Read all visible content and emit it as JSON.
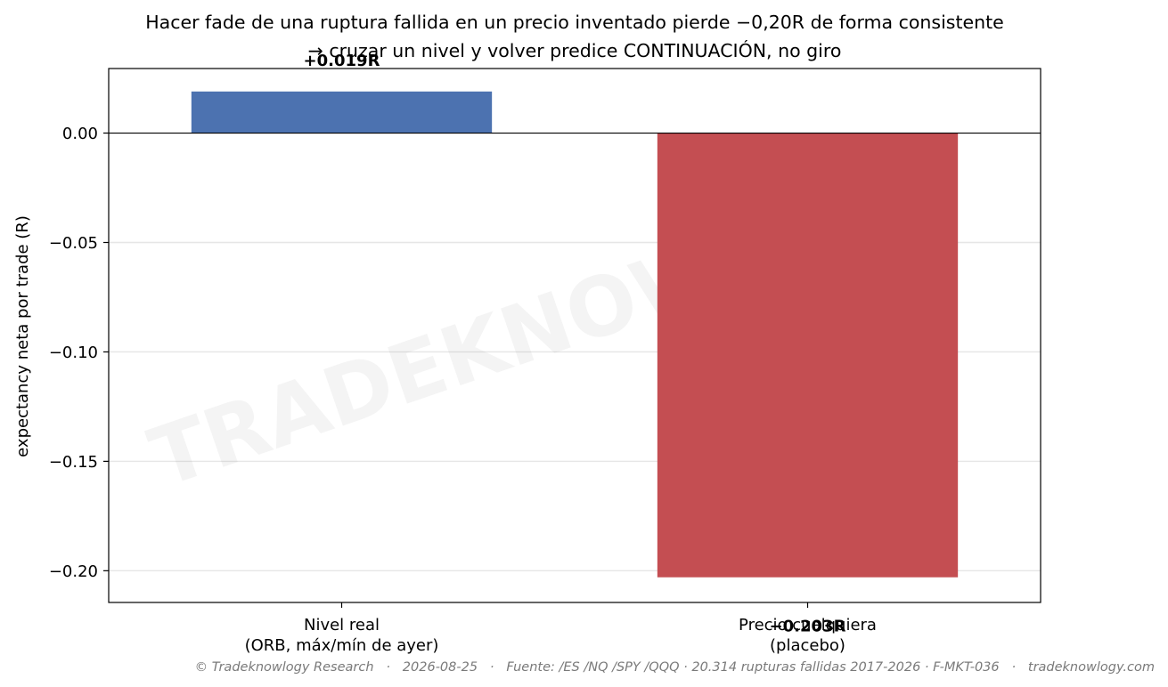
{
  "chart_data": {
    "type": "bar",
    "title_lines": [
      "Hacer fade de una ruptura fallida en un precio inventado pierde −0,20R de forma consistente",
      "→ cruzar un nivel y volver predice CONTINUACIÓN, no giro"
    ],
    "ylabel": "expectancy neta por trade (R)",
    "categories": [
      [
        "Nivel real",
        "(ORB, máx/mín de ayer)"
      ],
      [
        "Precio cualquiera",
        "(placebo)"
      ]
    ],
    "values": [
      0.019,
      -0.203
    ],
    "value_labels": [
      "+0.019R",
      "−0.203R"
    ],
    "colors": [
      "#4c72b0",
      "#c44e52"
    ],
    "ylim": [
      -0.2145,
      0.0295
    ],
    "yticks": [
      0.0,
      -0.05,
      -0.1,
      -0.15,
      -0.2
    ],
    "ytick_labels": [
      "0.00",
      "−0.05",
      "−0.10",
      "−0.15",
      "−0.20"
    ],
    "grid": "horizontal"
  },
  "watermark": "TRADEKNOWLOGY",
  "footer": "© Tradeknowlogy Research   ·   2026-08-25   ·   Fuente: /ES /NQ /SPY /QQQ · 20.314 rupturas fallidas 2017-2026 · F-MKT-036   ·   tradeknowlogy.com"
}
